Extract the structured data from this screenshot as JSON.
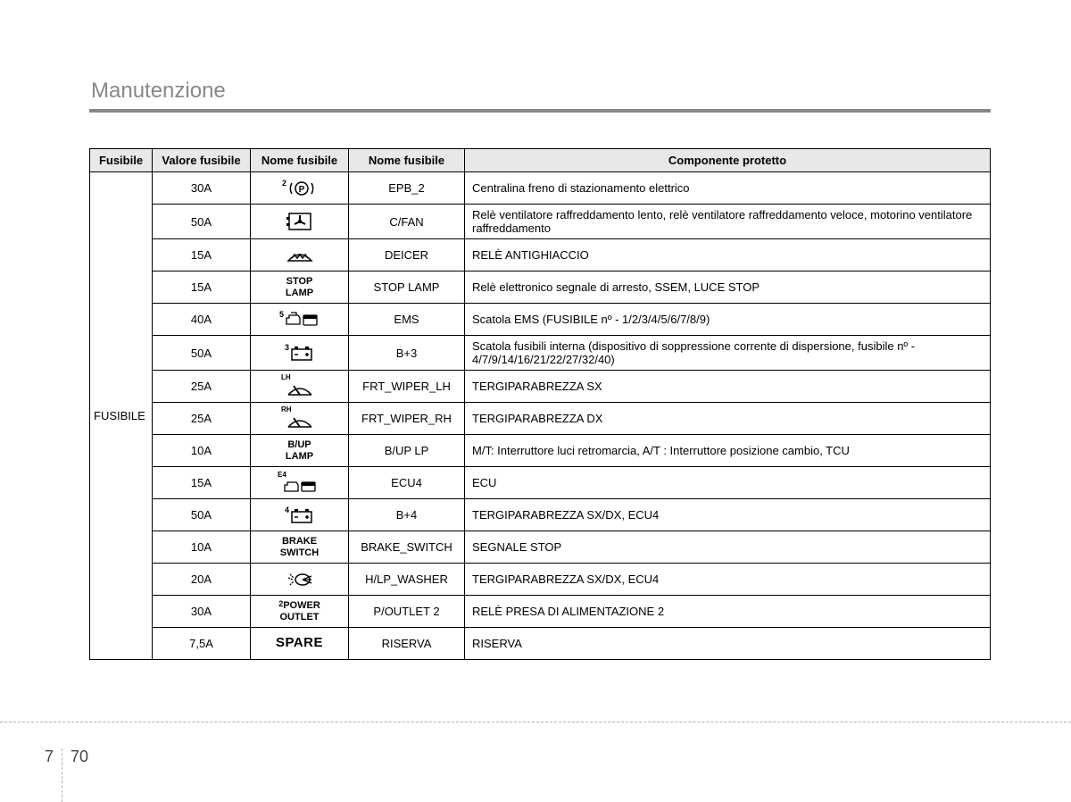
{
  "page": {
    "title": "Manutenzione",
    "pageNumLeft": "7",
    "pageNumRight": "70"
  },
  "table": {
    "headers": {
      "c0": "Fusibile",
      "c1": "Valore fusibile",
      "c2": "Nome fusibile",
      "c3": "Nome fusibile",
      "c4": "Componente protetto"
    },
    "rowHeader": "FUSIBILE",
    "rows": [
      {
        "valore": "30A",
        "iconKey": "epb",
        "iconSup": "2",
        "nome": "EPB_2",
        "comp": "Centralina freno di stazionamento elettrico"
      },
      {
        "valore": "50A",
        "iconKey": "cfan",
        "iconSup": "",
        "nome": "C/FAN",
        "comp": "Relè ventilatore raffreddamento lento, relè ventilatore raffreddamento veloce, motorino ventilatore raffreddamento"
      },
      {
        "valore": "15A",
        "iconKey": "deicer",
        "iconSup": "",
        "nome": "DEICER",
        "comp": "RELÈ ANTIGHIACCIO"
      },
      {
        "valore": "15A",
        "iconKey": "stoplamp",
        "iconSup": "",
        "nome": "STOP LAMP",
        "comp": "Relè elettronico segnale di arresto, SSEM, LUCE STOP"
      },
      {
        "valore": "40A",
        "iconKey": "ems",
        "iconSup": "5",
        "nome": "EMS",
        "comp": "Scatola EMS (FUSIBILE nº - 1/2/3/4/5/6/7/8/9)"
      },
      {
        "valore": "50A",
        "iconKey": "bplus",
        "iconSup": "3",
        "nome": "B+3",
        "comp": "Scatola fusibili interna (dispositivo di soppressione corrente di dispersione, fusibile nº - 4/7/9/14/16/21/22/27/32/40)"
      },
      {
        "valore": "25A",
        "iconKey": "wiper",
        "iconSup": "LH",
        "nome": "FRT_WIPER_LH",
        "comp": "TERGIPARABREZZA SX"
      },
      {
        "valore": "25A",
        "iconKey": "wiper",
        "iconSup": "RH",
        "nome": "FRT_WIPER_RH",
        "comp": "TERGIPARABREZZA DX"
      },
      {
        "valore": "10A",
        "iconKey": "buplamp",
        "iconSup": "",
        "nome": "B/UP LP",
        "comp": "M/T: Interruttore luci retromarcia, A/T : Interruttore posizione cambio, TCU"
      },
      {
        "valore": "15A",
        "iconKey": "ecu",
        "iconSup": "E4",
        "nome": "ECU4",
        "comp": "ECU"
      },
      {
        "valore": "50A",
        "iconKey": "bplus",
        "iconSup": "4",
        "nome": "B+4",
        "comp": "TERGIPARABREZZA SX/DX, ECU4"
      },
      {
        "valore": "10A",
        "iconKey": "brakeswitch",
        "iconSup": "",
        "nome": "BRAKE_SWITCH",
        "comp": "SEGNALE STOP"
      },
      {
        "valore": "20A",
        "iconKey": "hlpwasher",
        "iconSup": "",
        "nome": "H/LP_WASHER",
        "comp": "TERGIPARABREZZA SX/DX, ECU4"
      },
      {
        "valore": "30A",
        "iconKey": "poweroutlet",
        "iconSup": "2",
        "nome": "P/OUTLET 2",
        "comp": "RELÈ PRESA DI ALIMENTAZIONE 2"
      },
      {
        "valore": "7,5A",
        "iconKey": "spare",
        "iconSup": "",
        "nome": "RISERVA",
        "comp": "RISERVA"
      }
    ],
    "iconLabels": {
      "stoplamp_l1": "STOP",
      "stoplamp_l2": "LAMP",
      "buplamp_l1": "B/UP",
      "buplamp_l2": "LAMP",
      "brakeswitch_l1": "BRAKE",
      "brakeswitch_l2": "SWITCH",
      "poweroutlet_l1": "POWER",
      "poweroutlet_l2": "OUTLET",
      "spare": "SPARE"
    }
  },
  "colors": {
    "headerBg": "#e8e8e8",
    "border": "#000000",
    "titleText": "#888888",
    "dash": "#b0b0b0"
  }
}
